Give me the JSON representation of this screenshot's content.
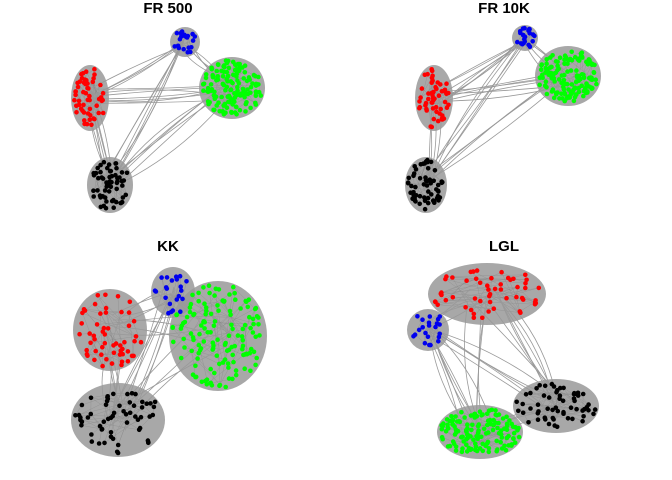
{
  "panels": [
    {
      "title": "FR 500",
      "clusters": [
        {
          "color_name": "blue",
          "color": "#0000ee",
          "nodes": 22
        },
        {
          "color_name": "red",
          "color": "#ff0000",
          "nodes": 55
        },
        {
          "color_name": "green",
          "color": "#00ff00",
          "nodes": 140
        },
        {
          "color_name": "black",
          "color": "#000000",
          "nodes": 60
        }
      ]
    },
    {
      "title": "FR 10K",
      "clusters": [
        {
          "color_name": "blue",
          "color": "#0000ee",
          "nodes": 22
        },
        {
          "color_name": "red",
          "color": "#ff0000",
          "nodes": 55
        },
        {
          "color_name": "green",
          "color": "#00ff00",
          "nodes": 140
        },
        {
          "color_name": "black",
          "color": "#000000",
          "nodes": 60
        }
      ]
    },
    {
      "title": "KK",
      "clusters": [
        {
          "color_name": "blue",
          "color": "#0000ee",
          "nodes": 22
        },
        {
          "color_name": "red",
          "color": "#ff0000",
          "nodes": 55
        },
        {
          "color_name": "green",
          "color": "#00ff00",
          "nodes": 140
        },
        {
          "color_name": "black",
          "color": "#000000",
          "nodes": 60
        }
      ]
    },
    {
      "title": "LGL",
      "clusters": [
        {
          "color_name": "blue",
          "color": "#0000ee",
          "nodes": 22
        },
        {
          "color_name": "red",
          "color": "#ff0000",
          "nodes": 55
        },
        {
          "color_name": "green",
          "color": "#00ff00",
          "nodes": 140
        },
        {
          "color_name": "black",
          "color": "#000000",
          "nodes": 60
        }
      ]
    }
  ],
  "edge_color": "#999999"
}
